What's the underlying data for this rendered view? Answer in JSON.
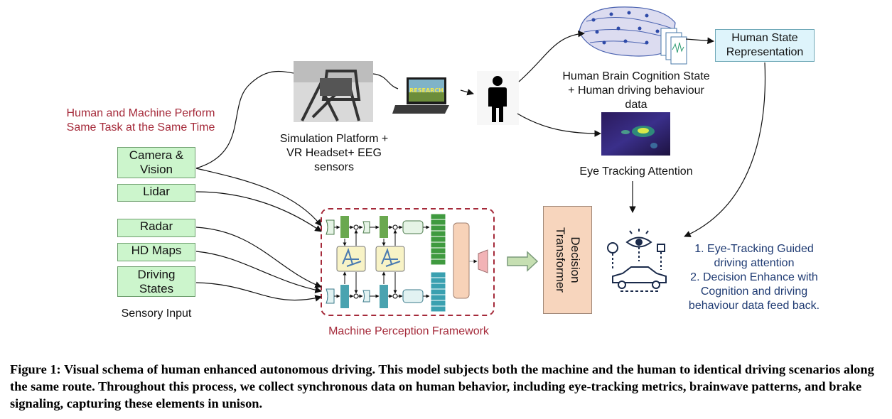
{
  "human_machine_label": [
    "Human and Machine Perform",
    "Same Task at the Same Time"
  ],
  "sensors": {
    "camera": [
      "Camera &",
      "Vision"
    ],
    "lidar": "Lidar",
    "radar": "Radar",
    "hdmaps": "HD Maps",
    "driving": [
      "Driving",
      "States"
    ]
  },
  "sensory_input_label": "Sensory Input",
  "simulation_label": [
    "Simulation Platform  +",
    "VR Headset+ EEG",
    "sensors"
  ],
  "laptop_screen_text": "RESEARCH",
  "brain_label": [
    "Human Brain Cognition State",
    "+ Human driving behaviour",
    "data"
  ],
  "eye_tracking_label": "Eye Tracking Attention",
  "human_state_box": [
    "Human State",
    "Representation"
  ],
  "decision_transformer": "Decision Transformer",
  "machine_perception_label": "Machine Perception Framework",
  "outcomes": [
    "1. Eye-Tracking Guided",
    "driving attention",
    "2. Decision  Enhance with",
    "Cognition and driving",
    "behaviour data feed back."
  ],
  "caption": "Figure 1: Visual schema of human enhanced autonomous driving. This model subjects both the machine and the human to identical driving scenarios along the same route. Throughout this process, we collect synchronous data on human behavior, including eye-tracking metrics, brainwave patterns, and brake signaling, capturing these elements in unison.",
  "colors": {
    "sensor_fill": "#ccf5cc",
    "hsr_fill": "#def4fb",
    "dt_fill": "#f7d5bd",
    "frame_red": "#a52a3a",
    "outcome_blue": "#1f3b73"
  }
}
